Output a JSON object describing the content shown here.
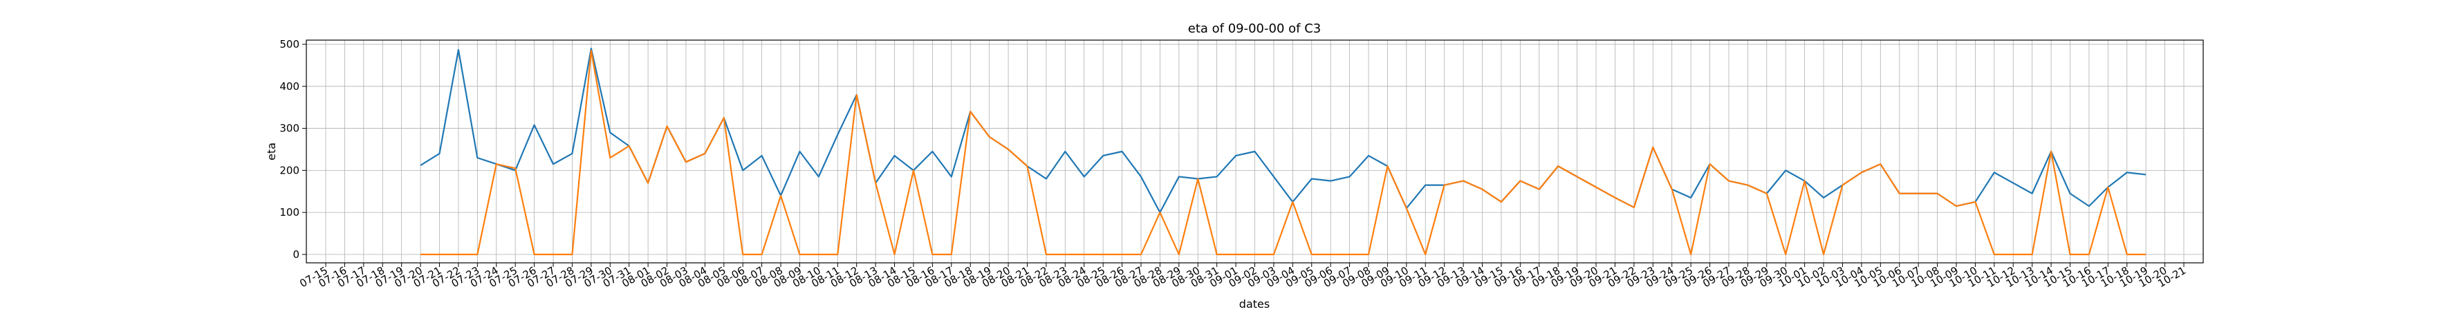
{
  "chart_data": {
    "type": "line",
    "title": "eta of 09-00-00 of C3",
    "xlabel": "dates",
    "ylabel": "eta",
    "grid": true,
    "ylim": [
      -20,
      510
    ],
    "yticks": [
      0,
      100,
      200,
      300,
      400,
      500
    ],
    "x_ticks": [
      "07-15",
      "07-16",
      "07-17",
      "07-18",
      "07-19",
      "07-20",
      "07-21",
      "07-22",
      "07-23",
      "07-24",
      "07-25",
      "07-26",
      "07-27",
      "07-28",
      "07-29",
      "07-30",
      "07-31",
      "08-01",
      "08-02",
      "08-03",
      "08-04",
      "08-05",
      "08-06",
      "08-07",
      "08-08",
      "08-09",
      "08-10",
      "08-11",
      "08-12",
      "08-13",
      "08-14",
      "08-15",
      "08-16",
      "08-17",
      "08-18",
      "08-19",
      "08-20",
      "08-21",
      "08-22",
      "08-23",
      "08-24",
      "08-25",
      "08-26",
      "08-27",
      "08-28",
      "08-29",
      "08-30",
      "08-31",
      "09-01",
      "09-02",
      "09-03",
      "09-04",
      "09-05",
      "09-06",
      "09-07",
      "09-08",
      "09-09",
      "09-10",
      "09-11",
      "09-12",
      "09-13",
      "09-14",
      "09-15",
      "09-16",
      "09-17",
      "09-18",
      "09-19",
      "09-20",
      "09-21",
      "09-22",
      "09-23",
      "09-24",
      "09-25",
      "09-26",
      "09-27",
      "09-28",
      "09-29",
      "09-30",
      "10-01",
      "10-02",
      "10-03",
      "10-04",
      "10-05",
      "10-06",
      "10-07",
      "10-08",
      "10-09",
      "10-10",
      "10-11",
      "10-12",
      "10-13",
      "10-14",
      "10-15",
      "10-16",
      "10-17",
      "10-18",
      "10-19",
      "10-20",
      "10-21"
    ],
    "x_start": "07-20",
    "colors": [
      "#1f77b4",
      "#ff7f0e"
    ],
    "series": [
      {
        "values": [
          212,
          240,
          487,
          230,
          215,
          200,
          308,
          215,
          240,
          490,
          290,
          258,
          170,
          305,
          220,
          240,
          325,
          200,
          235,
          140,
          245,
          185,
          285,
          380,
          170,
          235,
          200,
          245,
          185,
          340,
          280,
          250,
          210,
          180,
          245,
          185,
          235,
          245,
          185,
          100,
          185,
          180,
          185,
          235,
          245,
          185,
          125,
          180,
          175,
          185,
          235,
          210,
          110,
          165,
          165,
          175,
          155,
          125,
          175,
          155,
          210,
          185,
          160,
          135,
          112,
          255,
          155,
          135,
          215,
          175,
          165,
          145,
          200,
          175,
          135,
          165,
          195,
          215,
          145,
          145,
          145,
          115,
          125,
          195,
          170,
          145,
          245,
          145,
          115,
          160,
          195,
          190
        ]
      },
      {
        "values": [
          0,
          0,
          0,
          0,
          215,
          205,
          0,
          0,
          0,
          485,
          230,
          258,
          170,
          305,
          220,
          240,
          325,
          0,
          0,
          140,
          0,
          0,
          0,
          380,
          170,
          0,
          200,
          0,
          0,
          340,
          280,
          250,
          210,
          0,
          0,
          0,
          0,
          0,
          0,
          100,
          0,
          180,
          0,
          0,
          0,
          0,
          125,
          0,
          0,
          0,
          0,
          210,
          110,
          0,
          165,
          175,
          155,
          125,
          175,
          155,
          210,
          185,
          160,
          135,
          112,
          255,
          155,
          0,
          215,
          175,
          165,
          145,
          0,
          175,
          0,
          165,
          195,
          215,
          145,
          145,
          145,
          115,
          125,
          0,
          0,
          0,
          245,
          0,
          0,
          160,
          0,
          0
        ]
      }
    ]
  }
}
